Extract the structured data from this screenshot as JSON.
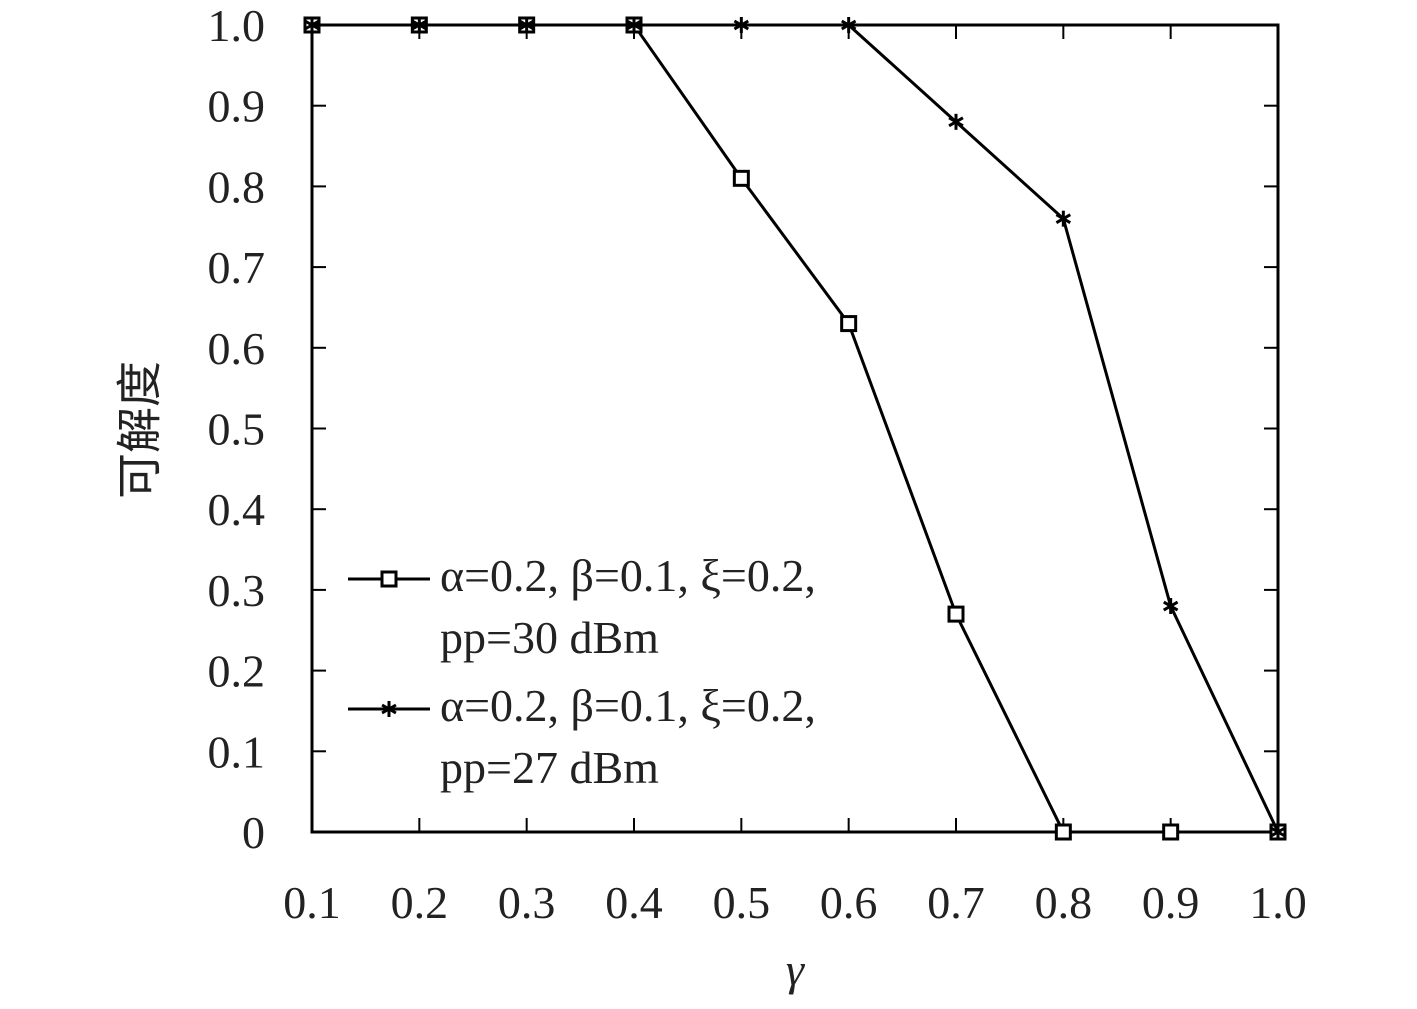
{
  "chart_data": {
    "type": "line",
    "x_label": "γ",
    "y_label": "可解度",
    "x": [
      0.1,
      0.2,
      0.3,
      0.4,
      0.5,
      0.6,
      0.7,
      0.8,
      0.9,
      1.0
    ],
    "series": [
      {
        "name": "α=0.2, β=0.1, ξ=0.2, pp=30 dBm",
        "color": "#000000",
        "marker": "square",
        "values": [
          1,
          1,
          1,
          1,
          0.81,
          0.63,
          0.27,
          0,
          0,
          0
        ]
      },
      {
        "name": "α=0.2, β=0.1, ξ=0.2, pp=27 dBm",
        "color": "#000000",
        "marker": "star",
        "values": [
          1,
          1,
          1,
          1,
          1,
          1,
          0.88,
          0.76,
          0.28,
          0
        ]
      }
    ],
    "xlim": [
      0.1,
      1.0
    ],
    "xticks": [
      0.1,
      0.2,
      0.3,
      0.4,
      0.5,
      0.6,
      0.7,
      0.8,
      0.9,
      {
        "value": 1,
        "label": "1.0"
      }
    ],
    "ylim": [
      0,
      1.0
    ],
    "yticks": [
      0,
      0.1,
      0.2,
      0.3,
      0.4,
      0.5,
      0.6,
      0.7,
      0.8,
      0.9,
      {
        "value": 1,
        "label": "1.0"
      }
    ],
    "grid": false,
    "legend_position": "lower left"
  }
}
